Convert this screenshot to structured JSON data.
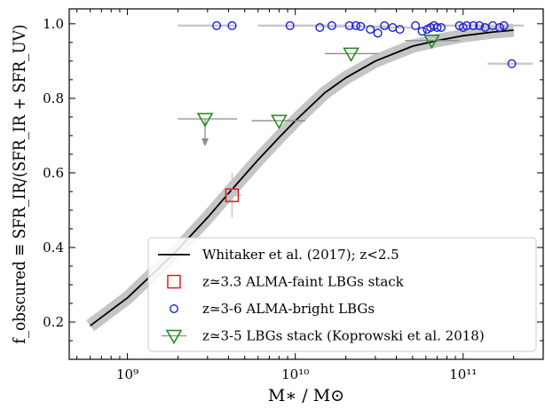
{
  "chart_data": {
    "type": "scatter",
    "xlabel": "M∗ / M⊙",
    "ylabel": "f_obscured ≡ SFR_IR/(SFR_IR + SFR_UV)",
    "xscale": "log",
    "xlim": [
      450000000,
      300000000000
    ],
    "ylim": [
      0.1,
      1.04
    ],
    "x_ticks": [
      1000000000,
      10000000000,
      100000000000
    ],
    "x_tick_labels": [
      "10⁹",
      "10¹⁰",
      "10¹¹"
    ],
    "y_ticks": [
      0.2,
      0.4,
      0.6,
      0.8,
      1.0
    ],
    "y_tick_labels": [
      "0.2",
      "0.4",
      "0.6",
      "0.8",
      "1.0"
    ],
    "grid": false,
    "legend_placement": "bottom-right",
    "colors": {
      "curve": "#000000",
      "curve_band": "#bfbfbf",
      "faint_stack": "#e41a1c",
      "bright": "#1f1fd6",
      "koprowski": "#1a8a1a",
      "errorbar": "#8c8c8c",
      "bright_errorbar": "#c8c8c8"
    },
    "series": [
      {
        "name": "Whitaker et al. (2017); z<2.5",
        "kind": "curve",
        "x": [
          600000000,
          1000000000,
          1500000000,
          2000000000,
          3000000000,
          4000000000,
          6000000000,
          8000000000,
          10000000000,
          15000000000,
          20000000000,
          30000000000,
          50000000000,
          70000000000,
          100000000000,
          150000000000,
          200000000000
        ],
        "y": [
          0.19,
          0.265,
          0.34,
          0.395,
          0.48,
          0.545,
          0.635,
          0.695,
          0.74,
          0.815,
          0.855,
          0.9,
          0.94,
          0.955,
          0.968,
          0.978,
          0.983
        ]
      },
      {
        "name": "z≃3.3 ALMA-faint LBGs stack",
        "kind": "square",
        "points": [
          {
            "x": 4200000000,
            "y": 0.54,
            "xerr": [
              3700000000,
              4800000000
            ],
            "yerr": [
              0.48,
              0.6
            ]
          }
        ]
      },
      {
        "name": "z≃3-6 ALMA-bright LBGs",
        "kind": "circle",
        "points": [
          {
            "x": 3400000000,
            "y": 0.995,
            "xerr": [
              2000000000,
              4500000000
            ]
          },
          {
            "x": 4200000000,
            "y": 0.995
          },
          {
            "x": 9300000000,
            "y": 0.995,
            "xerr": [
              6000000000,
              20000000000
            ]
          },
          {
            "x": 14000000000,
            "y": 0.99
          },
          {
            "x": 16500000000,
            "y": 0.995
          },
          {
            "x": 21000000000,
            "y": 0.995
          },
          {
            "x": 23000000000,
            "y": 0.995
          },
          {
            "x": 24500000000,
            "y": 0.993,
            "xerr": [
              15000000000,
              35000000000
            ]
          },
          {
            "x": 28000000000,
            "y": 0.985
          },
          {
            "x": 31000000000,
            "y": 0.975
          },
          {
            "x": 34000000000,
            "y": 0.995
          },
          {
            "x": 38000000000,
            "y": 0.99,
            "xerr": [
              28000000000,
              50000000000
            ]
          },
          {
            "x": 42000000000,
            "y": 0.985
          },
          {
            "x": 52000000000,
            "y": 0.995
          },
          {
            "x": 57000000000,
            "y": 0.98
          },
          {
            "x": 61000000000,
            "y": 0.985
          },
          {
            "x": 64000000000,
            "y": 0.99
          },
          {
            "x": 67000000000,
            "y": 0.995
          },
          {
            "x": 70000000000,
            "y": 0.99
          },
          {
            "x": 74000000000,
            "y": 0.99
          },
          {
            "x": 95000000000,
            "y": 0.995,
            "xerr": [
              60000000000,
              130000000000
            ]
          },
          {
            "x": 100000000000,
            "y": 0.99
          },
          {
            "x": 105000000000,
            "y": 0.995
          },
          {
            "x": 115000000000,
            "y": 0.995
          },
          {
            "x": 125000000000,
            "y": 0.995
          },
          {
            "x": 135000000000,
            "y": 0.99
          },
          {
            "x": 150000000000,
            "y": 0.995
          },
          {
            "x": 165000000000,
            "y": 0.99
          },
          {
            "x": 175000000000,
            "y": 0.995,
            "xerr": [
              120000000000,
              230000000000
            ]
          },
          {
            "x": 195000000000,
            "y": 0.893,
            "xerr": [
              140000000000,
              260000000000
            ]
          }
        ]
      },
      {
        "name": "z≃3-5 LBGs stack (Koprowski et al. 2018)",
        "kind": "triangle-down",
        "points": [
          {
            "x": 2900000000,
            "y": 0.745,
            "xerr": [
              2000000000,
              4500000000
            ],
            "upper_limit_arrow": true
          },
          {
            "x": 8000000000,
            "y": 0.74,
            "xerr": [
              5500000000,
              11500000000
            ]
          },
          {
            "x": 21500000000,
            "y": 0.92,
            "xerr": [
              15000000000,
              31000000000
            ]
          },
          {
            "x": 65000000000,
            "y": 0.955,
            "xerr": [
              45000000000,
              95000000000
            ]
          }
        ]
      }
    ]
  }
}
